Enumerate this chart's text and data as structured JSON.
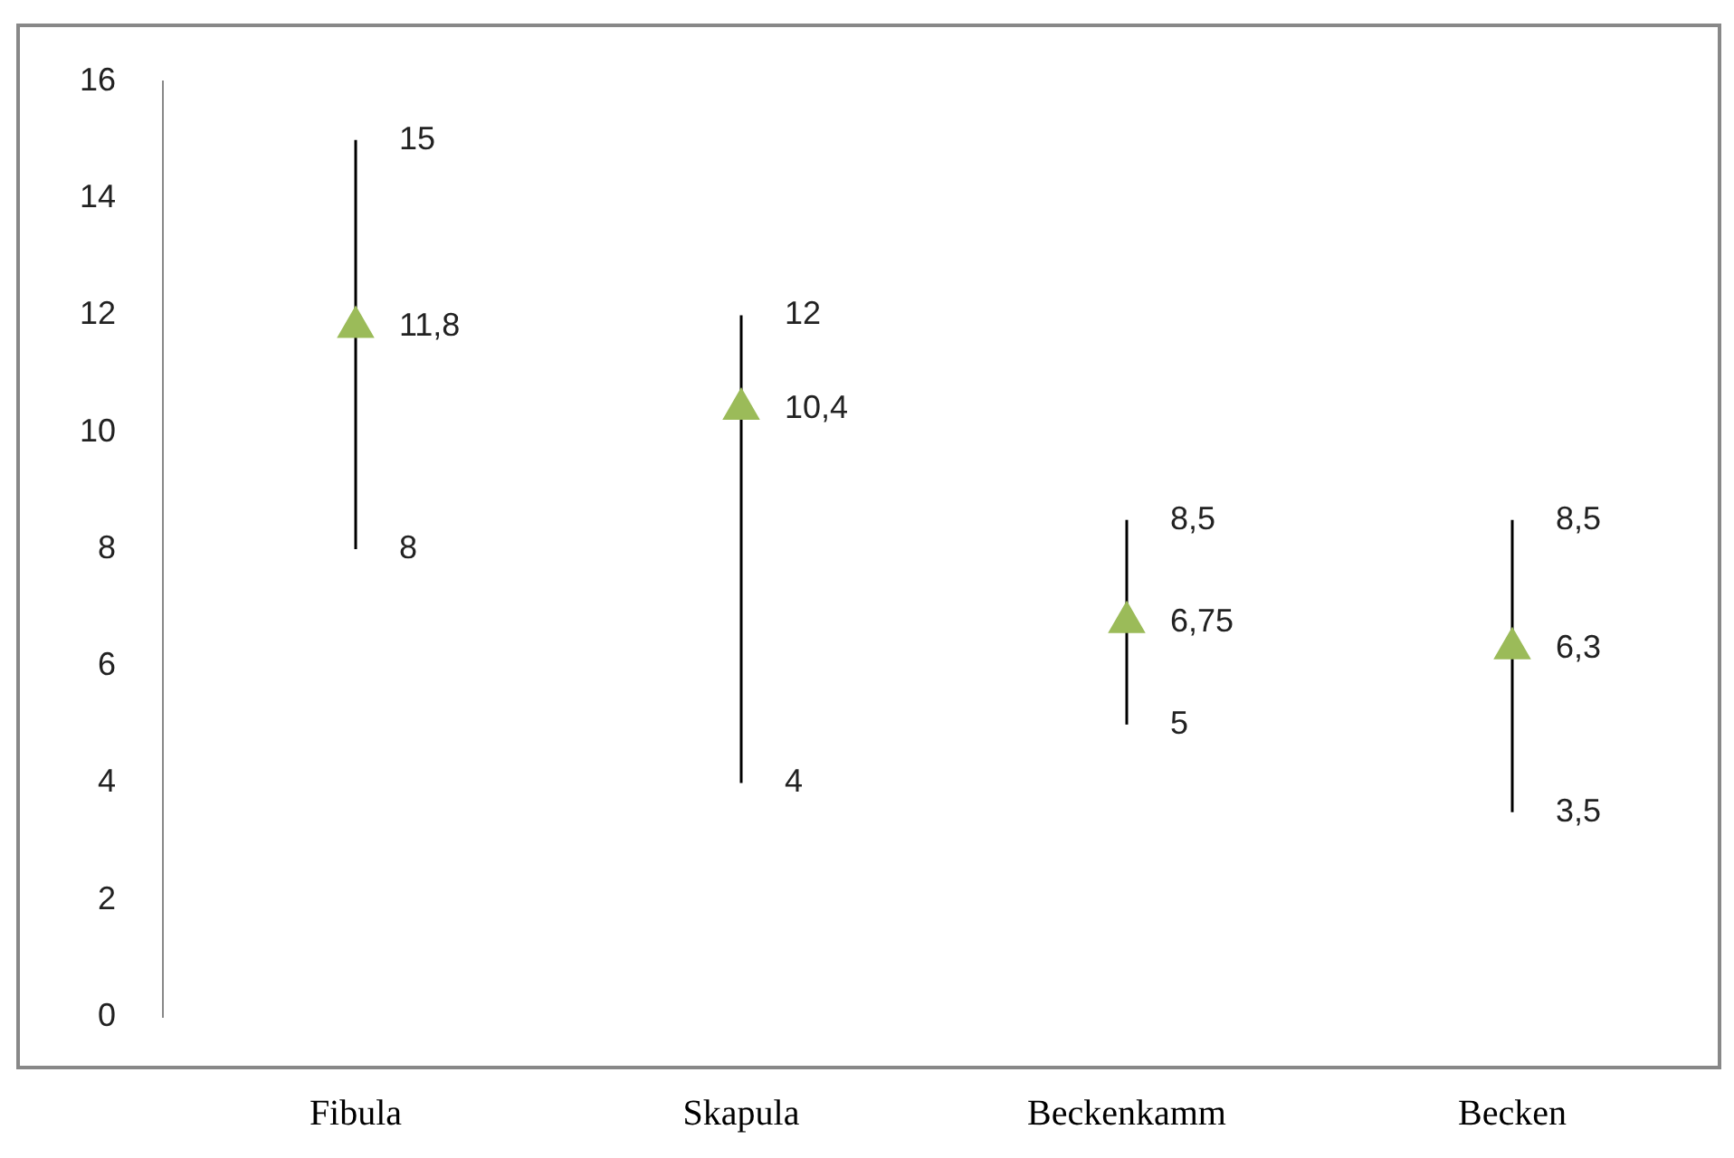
{
  "chart_data": {
    "type": "scatter",
    "categories": [
      "Fibula",
      "Skapula",
      "Beckenkamm",
      "Becken"
    ],
    "values": [
      11.8,
      10.4,
      6.75,
      6.3
    ],
    "errors": [
      [
        8,
        15
      ],
      [
        4,
        12
      ],
      [
        5,
        8.5
      ],
      [
        3.5,
        8.5
      ]
    ],
    "value_labels": [
      "11,8",
      "10,4",
      "6,75",
      "6,3"
    ],
    "color": "#9bbb59",
    "marker": "triangle",
    "ylim": [
      0,
      16
    ],
    "yticks": [
      0,
      2,
      4,
      6,
      8,
      10,
      12,
      14,
      16
    ],
    "grid": false,
    "legend": false,
    "annotations": [
      {
        "text": "15",
        "x": "Fibula",
        "y": 15
      },
      {
        "text": "8",
        "x": "Fibula",
        "y": 8
      },
      {
        "text": "12",
        "x": "Skapula",
        "y": 12
      },
      {
        "text": "4",
        "x": "Skapula",
        "y": 4
      },
      {
        "text": "8,5",
        "x": "Beckenkamm",
        "y": 8.5
      },
      {
        "text": "5",
        "x": "Beckenkamm",
        "y": 5
      },
      {
        "text": "8,5",
        "x": "Becken",
        "y": 8.5
      },
      {
        "text": "3,5",
        "x": "Becken",
        "y": 3.5
      }
    ]
  }
}
